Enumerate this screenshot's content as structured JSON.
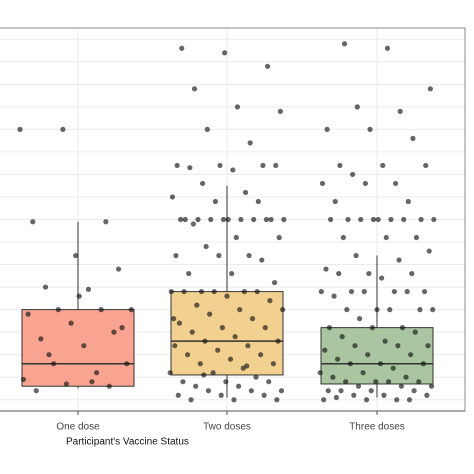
{
  "chart_data": {
    "type": "boxplot",
    "x_label": "Participant's Vaccine Status",
    "categories": [
      "One dose",
      "Two doses",
      "Three doses"
    ],
    "colors": [
      "#f9a391",
      "#f2d08f",
      "#a9c6a0"
    ],
    "ylim": [
      -0.5,
      16.5
    ],
    "ygrid": [
      0,
      1,
      2,
      3,
      4,
      5,
      6,
      7,
      8,
      9,
      10,
      11,
      12,
      13,
      14,
      15,
      16
    ],
    "grid": true,
    "boxes": [
      {
        "whislo": 0.5,
        "q1": 0.6,
        "med": 1.6,
        "q3": 4.0,
        "whishi": 7.9
      },
      {
        "whislo": 0.1,
        "q1": 1.1,
        "med": 2.6,
        "q3": 4.8,
        "whishi": 9.5
      },
      {
        "whislo": 0.1,
        "q1": 0.7,
        "med": 1.6,
        "q3": 3.2,
        "whishi": 6.4
      }
    ],
    "points": [
      [
        12.0,
        12.0,
        7.9,
        7.9,
        6.4,
        5.8,
        5.0,
        4.9,
        4.0,
        4.0,
        4.0,
        3.8,
        3.4,
        3.0,
        2.7,
        2.4,
        1.6,
        1.6,
        1.2,
        0.9,
        0.7,
        0.6,
        0.4,
        4.6,
        3.2,
        2.0,
        0.8
      ],
      [
        15.6,
        15.4,
        14.8,
        13.8,
        13.0,
        12.8,
        12.0,
        11.4,
        10.4,
        10.4,
        10.4,
        10.3,
        10.2,
        10.4,
        9.6,
        9.2,
        9.0,
        8.8,
        8.8,
        8.0,
        8.0,
        8.0,
        8.0,
        8.0,
        8.0,
        8.0,
        8.0,
        8.0,
        8.0,
        8.0,
        7.8,
        7.2,
        7.2,
        6.8,
        6.4,
        6.4,
        6.4,
        6.2,
        5.6,
        5.6,
        5.2,
        4.8,
        4.8,
        4.8,
        4.8,
        4.8,
        4.8,
        4.6,
        4.4,
        4.2,
        4.0,
        4.0,
        3.8,
        3.6,
        3.4,
        3.2,
        3.2,
        3.0,
        2.8,
        2.6,
        2.6,
        2.4,
        2.4,
        2.2,
        2.0,
        2.0,
        1.8,
        1.6,
        1.6,
        1.4,
        1.2,
        1.2,
        1.0,
        0.8,
        0.8,
        0.8,
        0.6,
        0.6,
        0.4,
        0.4,
        0.4,
        0.2,
        0.2,
        0.2,
        0.0,
        0.0,
        0.0,
        1.1,
        1.5,
        3.6
      ],
      [
        15.8,
        15.6,
        13.8,
        13.0,
        12.8,
        12.0,
        12.0,
        11.6,
        10.4,
        10.4,
        10.4,
        10.0,
        9.6,
        9.6,
        9.6,
        8.8,
        8.8,
        8.0,
        8.0,
        8.0,
        8.0,
        8.0,
        8.0,
        8.0,
        8.0,
        8.0,
        7.2,
        7.2,
        7.2,
        6.6,
        6.4,
        6.2,
        5.8,
        5.6,
        5.6,
        5.6,
        5.4,
        4.8,
        4.8,
        4.8,
        4.8,
        4.8,
        4.8,
        4.6,
        4.0,
        4.0,
        4.0,
        4.0,
        4.0,
        3.6,
        3.2,
        3.2,
        3.2,
        3.0,
        2.8,
        2.6,
        2.4,
        2.4,
        2.4,
        2.2,
        2.0,
        2.0,
        1.8,
        1.6,
        1.6,
        1.6,
        1.4,
        1.2,
        1.2,
        1.0,
        1.0,
        0.8,
        0.8,
        0.8,
        0.8,
        0.6,
        0.6,
        0.6,
        0.4,
        0.4,
        0.4,
        0.4,
        0.2,
        0.2,
        0.2,
        0.0,
        0.0,
        0.0,
        0.0,
        0.1
      ]
    ]
  }
}
